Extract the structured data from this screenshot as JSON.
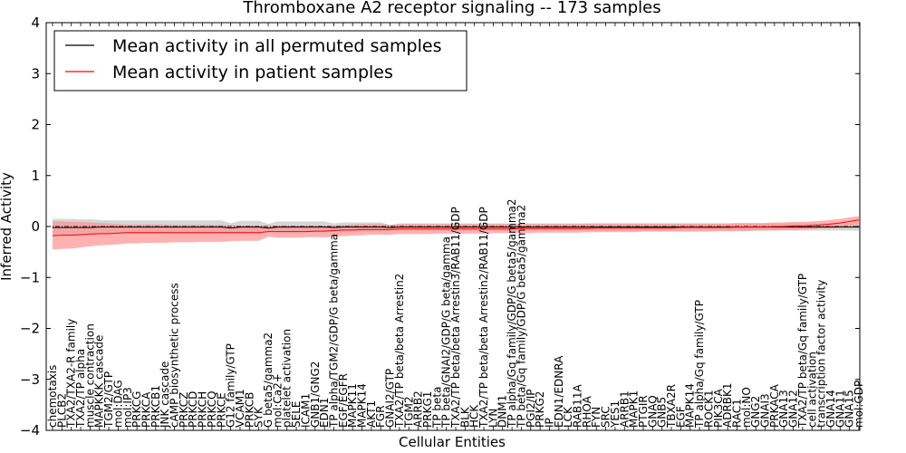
{
  "chart_data": {
    "type": "line",
    "title": "Thromboxane A2 receptor signaling -- 173 samples",
    "xlabel": "Cellular Entities",
    "ylabel": "Inferred Activity",
    "ylim": [
      -4,
      4
    ],
    "yticks": [
      -4,
      -3,
      -2,
      -1,
      0,
      1,
      2,
      3,
      4
    ],
    "grid": false,
    "legend_position": "top-left",
    "baseline": 0,
    "legend": [
      {
        "label": "Mean activity in all permuted samples",
        "color": "#000000"
      },
      {
        "label": "Mean activity in patient samples",
        "color": "#ff0000"
      }
    ],
    "categories": [
      "chemotaxis",
      "PLCB2",
      "TXA2/TXA2-R family",
      "TXA2/TP alpha",
      "muscle contraction",
      "MAPKKK cascade",
      "TGM2/GTP",
      "mol:DAG",
      "mol:IP3",
      "PRKCG",
      "PRKCA",
      "PRKCB1",
      "JNK cascade",
      "cAMP biosynthetic process",
      "PRKCZ",
      "PRKCD",
      "PRKCH",
      "PRKCQ",
      "PRKCE",
      "G12 family/GTP",
      "VCAM1",
      "PRKCB",
      "SYK",
      "G beta5/gamma2",
      "mol:Ca2+",
      "platelet activation",
      "SELE",
      "ICAM1",
      "GNB1/GNG2",
      "EDN1",
      "TP alpha/TGM2/GDP/G beta/gamma",
      "EGF/EGFR",
      "MAPK11",
      "MAPK14",
      "AKT1",
      "FGR",
      "GNAI2/GTP",
      "TXA2/TP beta/beta Arrestin2",
      "TGM2",
      "ARRB2",
      "PRKG1",
      "TP beta",
      "TP beta/GNAI2/GDP/G beta/gamma",
      "TXA2/TP beta/beta Arrestin3/RAB11/GDP",
      "BLK",
      "HCK",
      "TXA2/TP beta/beta Arrestin2/RAB11/GDP",
      "LYN",
      "DNM1",
      "TP alpha/Gq family/GDP/G beta5/gamma2",
      "TP beta/Gq family/GDP/G beta5/gamma2",
      "PGI2/IP",
      "PRKG2",
      "IP",
      "EDN1/EDNRA",
      "LCK",
      "RAB11A",
      "RHOA",
      "FYN",
      "SRC",
      "YES1",
      "ARRB1",
      "MAPK1",
      "PTGIR",
      "GNAQ",
      "GNB5",
      "TBXA2R",
      "EGF",
      "MAPK14",
      "TP alpha/Gq family/GTP",
      "ROCK1",
      "PIK3CA",
      "ADRBK1",
      "RAC1",
      "mol:NO",
      "GNG2",
      "GNAI3",
      "PRKACA",
      "GNA13",
      "GNA12",
      "TXA2/TP beta/Gq family/GTP",
      "cell activation",
      "transcription factor activity",
      "GNA14",
      "GNA11",
      "GNA15",
      "mol:GDP"
    ],
    "series": [
      {
        "name": "Mean activity in all permuted samples",
        "color": "#000000",
        "band_color": "#bbbbbb",
        "values": [
          -0.02,
          -0.02,
          -0.02,
          -0.02,
          -0.02,
          -0.01,
          -0.01,
          -0.01,
          -0.01,
          -0.01,
          -0.01,
          -0.01,
          -0.01,
          -0.01,
          -0.01,
          -0.01,
          -0.01,
          -0.01,
          -0.01,
          -0.03,
          -0.01,
          -0.01,
          -0.01,
          -0.03,
          -0.01,
          -0.01,
          -0.01,
          -0.01,
          -0.01,
          -0.01,
          -0.02,
          -0.01,
          -0.01,
          -0.01,
          -0.01,
          -0.01,
          -0.02,
          -0.01,
          -0.01,
          -0.01,
          -0.01,
          -0.01,
          -0.01,
          -0.01,
          -0.01,
          -0.01,
          -0.01,
          -0.01,
          -0.01,
          -0.01,
          -0.01,
          -0.01,
          -0.01,
          -0.01,
          -0.01,
          -0.01,
          -0.01,
          -0.01,
          -0.01,
          -0.01,
          -0.01,
          -0.01,
          -0.01,
          -0.01,
          -0.01,
          -0.01,
          -0.01,
          -0.01,
          -0.01,
          -0.01,
          -0.01,
          -0.01,
          -0.01,
          -0.01,
          -0.01,
          -0.01,
          -0.01,
          -0.01,
          -0.01,
          -0.01,
          -0.01,
          -0.01,
          -0.01,
          -0.01,
          -0.01,
          -0.01,
          -0.01
        ],
        "upper": [
          0.15,
          0.15,
          0.15,
          0.14,
          0.14,
          0.13,
          0.12,
          0.12,
          0.12,
          0.12,
          0.12,
          0.12,
          0.12,
          0.12,
          0.12,
          0.12,
          0.12,
          0.12,
          0.12,
          0.06,
          0.11,
          0.11,
          0.11,
          0.05,
          0.1,
          0.1,
          0.1,
          0.1,
          0.1,
          0.1,
          0.06,
          0.08,
          0.08,
          0.08,
          0.08,
          0.08,
          0.03,
          0.06,
          0.06,
          0.06,
          0.06,
          0.06,
          0.06,
          0.06,
          0.06,
          0.06,
          0.06,
          0.06,
          0.06,
          0.06,
          0.06,
          0.06,
          0.06,
          0.06,
          0.06,
          0.06,
          0.06,
          0.06,
          0.06,
          0.06,
          0.06,
          0.06,
          0.06,
          0.06,
          0.06,
          0.06,
          0.06,
          0.06,
          0.06,
          0.06,
          0.06,
          0.06,
          0.06,
          0.06,
          0.06,
          0.06,
          0.06,
          0.06,
          0.06,
          0.06,
          0.06,
          0.06,
          0.06,
          0.06,
          0.06,
          0.06,
          0.06
        ],
        "lower": [
          -0.18,
          -0.18,
          -0.17,
          -0.17,
          -0.16,
          -0.15,
          -0.15,
          -0.14,
          -0.14,
          -0.14,
          -0.14,
          -0.14,
          -0.14,
          -0.14,
          -0.14,
          -0.14,
          -0.14,
          -0.14,
          -0.14,
          -0.12,
          -0.13,
          -0.13,
          -0.13,
          -0.11,
          -0.12,
          -0.12,
          -0.12,
          -0.12,
          -0.12,
          -0.12,
          -0.1,
          -0.1,
          -0.1,
          -0.1,
          -0.1,
          -0.1,
          -0.08,
          -0.08,
          -0.08,
          -0.08,
          -0.08,
          -0.08,
          -0.08,
          -0.08,
          -0.08,
          -0.08,
          -0.08,
          -0.08,
          -0.08,
          -0.08,
          -0.08,
          -0.08,
          -0.08,
          -0.08,
          -0.08,
          -0.08,
          -0.08,
          -0.08,
          -0.08,
          -0.08,
          -0.08,
          -0.08,
          -0.08,
          -0.08,
          -0.08,
          -0.08,
          -0.08,
          -0.08,
          -0.08,
          -0.08,
          -0.08,
          -0.08,
          -0.08,
          -0.08,
          -0.08,
          -0.08,
          -0.08,
          -0.08,
          -0.08,
          -0.08,
          -0.08,
          -0.08,
          -0.08,
          -0.08,
          -0.08,
          -0.08,
          -0.08
        ]
      },
      {
        "name": "Mean activity in patient samples",
        "color": "#ff0000",
        "band_color": "#ff9090",
        "values": [
          -0.18,
          -0.17,
          -0.17,
          -0.16,
          -0.15,
          -0.14,
          -0.14,
          -0.13,
          -0.12,
          -0.12,
          -0.12,
          -0.12,
          -0.12,
          -0.12,
          -0.12,
          -0.12,
          -0.12,
          -0.12,
          -0.12,
          -0.12,
          -0.12,
          -0.12,
          -0.12,
          -0.1,
          -0.1,
          -0.1,
          -0.1,
          -0.1,
          -0.09,
          -0.09,
          -0.08,
          -0.07,
          -0.07,
          -0.06,
          -0.06,
          -0.06,
          -0.06,
          -0.05,
          -0.05,
          -0.05,
          -0.05,
          -0.05,
          -0.05,
          -0.05,
          -0.05,
          -0.05,
          -0.05,
          -0.05,
          -0.05,
          -0.05,
          -0.04,
          -0.04,
          -0.04,
          -0.04,
          -0.04,
          -0.04,
          -0.04,
          -0.04,
          -0.03,
          -0.03,
          -0.03,
          -0.03,
          -0.03,
          -0.03,
          -0.03,
          -0.03,
          -0.03,
          -0.02,
          -0.02,
          -0.02,
          -0.02,
          -0.02,
          -0.02,
          -0.01,
          -0.01,
          -0.01,
          -0.01,
          0.0,
          0.0,
          0.01,
          0.01,
          0.02,
          0.03,
          0.05,
          0.07,
          0.1,
          0.13
        ],
        "upper": [
          0.1,
          0.1,
          0.09,
          0.09,
          0.08,
          0.07,
          0.06,
          0.05,
          0.04,
          0.04,
          0.04,
          0.04,
          0.04,
          0.03,
          0.03,
          0.03,
          0.03,
          0.03,
          0.03,
          0.02,
          0.02,
          0.02,
          0.02,
          0.01,
          0.02,
          0.02,
          0.02,
          0.02,
          0.02,
          0.02,
          0.01,
          0.03,
          0.04,
          0.05,
          0.05,
          0.05,
          0.03,
          0.05,
          0.05,
          0.05,
          0.05,
          0.05,
          0.05,
          0.05,
          0.05,
          0.05,
          0.05,
          0.05,
          0.05,
          0.05,
          0.05,
          0.05,
          0.05,
          0.05,
          0.05,
          0.05,
          0.05,
          0.06,
          0.06,
          0.06,
          0.06,
          0.06,
          0.06,
          0.06,
          0.06,
          0.06,
          0.06,
          0.06,
          0.06,
          0.06,
          0.06,
          0.06,
          0.06,
          0.07,
          0.07,
          0.07,
          0.07,
          0.08,
          0.08,
          0.09,
          0.09,
          0.1,
          0.11,
          0.13,
          0.15,
          0.18,
          0.2
        ],
        "lower": [
          -0.45,
          -0.44,
          -0.43,
          -0.41,
          -0.39,
          -0.37,
          -0.36,
          -0.35,
          -0.33,
          -0.33,
          -0.32,
          -0.32,
          -0.32,
          -0.31,
          -0.31,
          -0.31,
          -0.3,
          -0.3,
          -0.3,
          -0.29,
          -0.28,
          -0.28,
          -0.28,
          -0.2,
          -0.22,
          -0.22,
          -0.22,
          -0.21,
          -0.21,
          -0.21,
          -0.2,
          -0.19,
          -0.18,
          -0.17,
          -0.16,
          -0.16,
          -0.16,
          -0.15,
          -0.15,
          -0.15,
          -0.15,
          -0.14,
          -0.14,
          -0.14,
          -0.14,
          -0.14,
          -0.14,
          -0.13,
          -0.13,
          -0.13,
          -0.13,
          -0.13,
          -0.12,
          -0.12,
          -0.12,
          -0.12,
          -0.12,
          -0.11,
          -0.11,
          -0.11,
          -0.11,
          -0.11,
          -0.11,
          -0.1,
          -0.1,
          -0.1,
          -0.1,
          -0.1,
          -0.1,
          -0.1,
          -0.1,
          -0.09,
          -0.09,
          -0.09,
          -0.09,
          -0.08,
          -0.08,
          -0.08,
          -0.07,
          -0.07,
          -0.06,
          -0.05,
          -0.04,
          -0.03,
          -0.01,
          0.01,
          0.04
        ]
      }
    ]
  }
}
